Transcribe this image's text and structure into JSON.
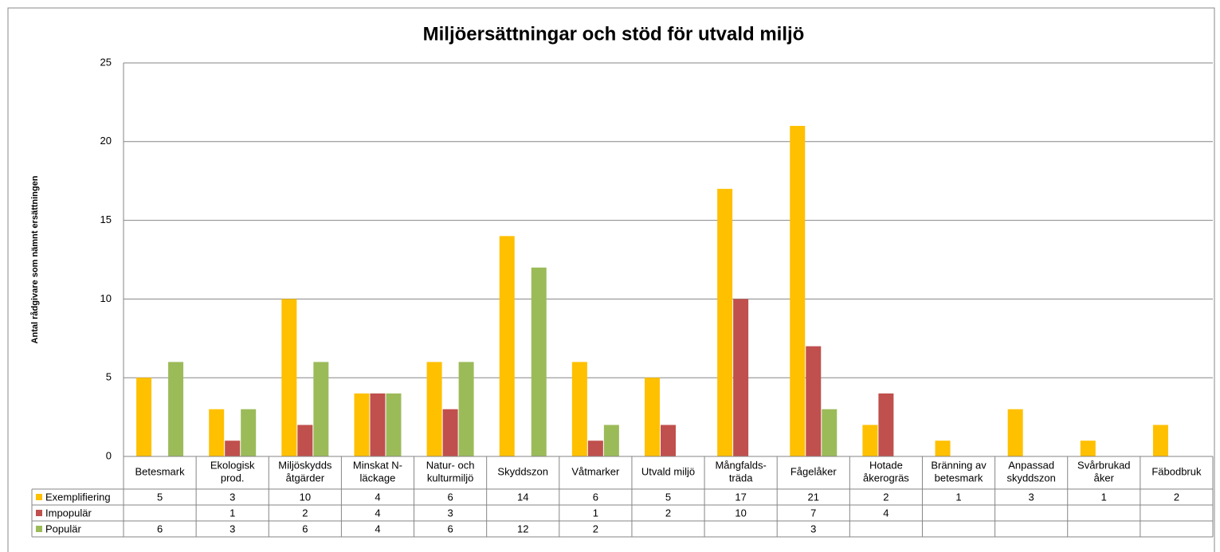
{
  "chart_data": {
    "type": "bar",
    "title": "Miljöersättningar och stöd för utvald miljö",
    "y_label": "Antal rådgivare som nämnt ersättningen",
    "categories": [
      "Betesmark",
      "Ekologisk\nprod.",
      "Miljöskydds\nåtgärder",
      "Minskat N-\nläckage",
      "Natur- och\nkulturmiljö",
      "Skyddszon",
      "Våtmarker",
      "Utvald miljö",
      "Mångfalds-\nträda",
      "Fågelåker",
      "Hotade\nåkerogräs",
      "Bränning av\nbetesmark",
      "Anpassad\nskyddszon",
      "Svårbrukad\nåker",
      "Fäbodbruk"
    ],
    "series": [
      {
        "name": "Exemplifiering",
        "color": "#ffc000",
        "values": [
          5,
          3,
          10,
          4,
          6,
          14,
          6,
          5,
          17,
          21,
          2,
          1,
          3,
          1,
          2
        ]
      },
      {
        "name": "Impopulär",
        "color": "#c0504d",
        "values": [
          null,
          1,
          2,
          4,
          3,
          null,
          1,
          2,
          10,
          7,
          4,
          null,
          null,
          null,
          null
        ]
      },
      {
        "name": "Populär",
        "color": "#9bbb59",
        "values": [
          6,
          3,
          6,
          4,
          6,
          12,
          2,
          null,
          null,
          3,
          null,
          null,
          null,
          null,
          null
        ]
      }
    ],
    "ylim": [
      0,
      25
    ],
    "yticks": [
      0,
      5,
      10,
      15,
      20,
      25
    ],
    "grid": true,
    "data_table": true
  }
}
